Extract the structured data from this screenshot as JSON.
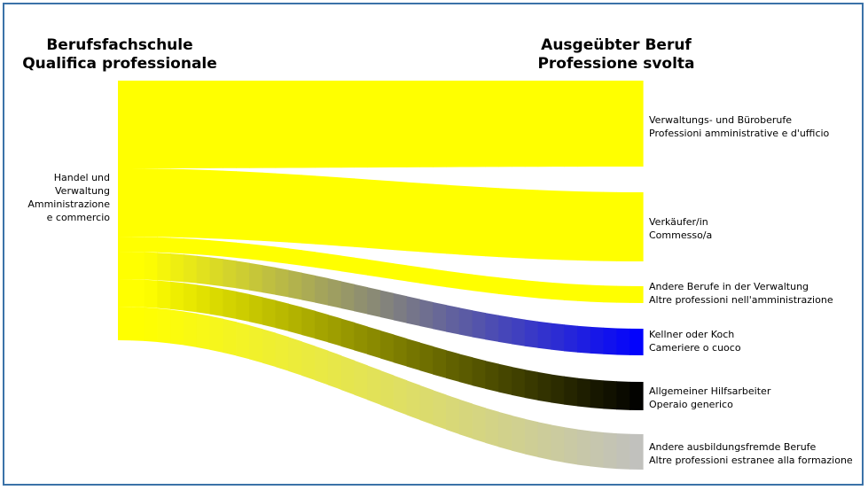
{
  "header": {
    "left_line1": "Berufsfachschule",
    "left_line2": "Qualifica professionale",
    "right_line1": "Ausgeübter Beruf",
    "right_line2": "Professione svolta"
  },
  "source": {
    "line1": "Handel und",
    "line2": "Verwaltung",
    "line3": "Amministrazione",
    "line4": "e commercio",
    "color": "#ffff00"
  },
  "flows": [
    {
      "line1": "Verwaltungs- und Büroberufe",
      "line2": "Professioni amministrative e d'ufficio",
      "color": "#ffff00"
    },
    {
      "line1": "Verkäufer/in",
      "line2": "Commesso/a",
      "color": "#ffff00"
    },
    {
      "line1": "Andere Berufe in der Verwaltung",
      "line2": "Altre professioni nell'amministrazione",
      "color": "#ffff00"
    },
    {
      "line1": "Kellner oder Koch",
      "line2": "Cameriere o cuoco",
      "color": "#0000ff"
    },
    {
      "line1": "Allgemeiner Hilfsarbeiter",
      "line2": "Operaio generico",
      "color": "#000000"
    },
    {
      "line1": "Andere ausbildungsfremde Berufe",
      "line2": "Altre professioni estranee alla formazione",
      "color": "#c0c0c0"
    }
  ]
}
